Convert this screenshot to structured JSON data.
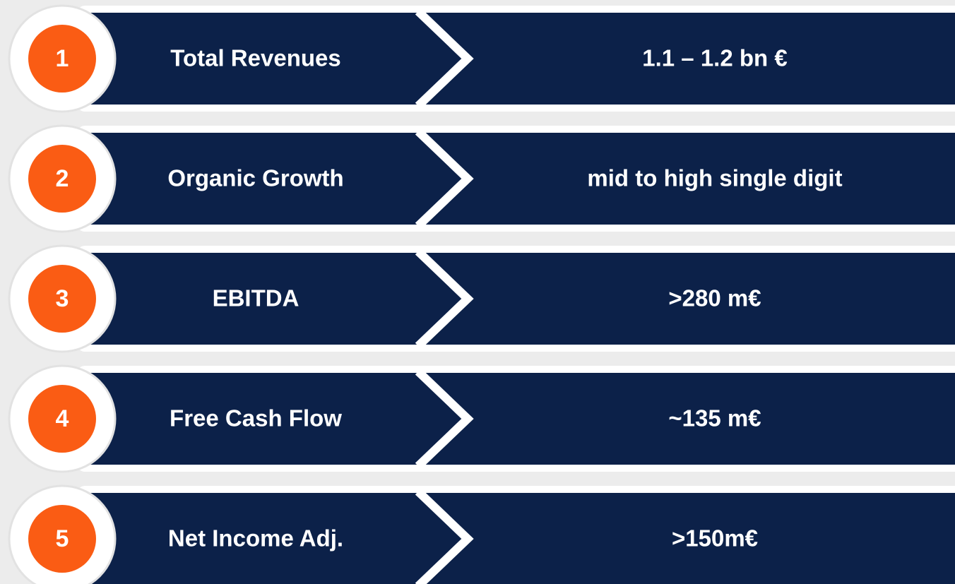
{
  "items": [
    {
      "number": "1",
      "label": "Total Revenues",
      "value": "1.1 – 1.2 bn €"
    },
    {
      "number": "2",
      "label": "Organic Growth",
      "value": "mid to high single digit"
    },
    {
      "number": "3",
      "label": "EBITDA",
      "value": ">280 m€"
    },
    {
      "number": "4",
      "label": "Free Cash Flow",
      "value": "~135 m€"
    },
    {
      "number": "5",
      "label": "Net Income Adj.",
      "value": ">150m€"
    }
  ]
}
